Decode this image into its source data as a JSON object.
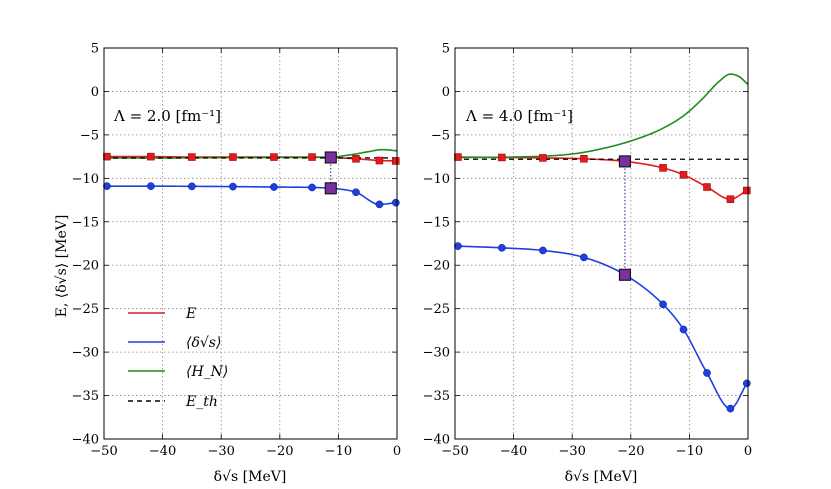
{
  "chart_data": [
    {
      "type": "line",
      "panel": "left",
      "annotation": "Λ = 2.0 [fm⁻¹]",
      "xlabel": "δ√s [MeV]",
      "ylabel": "E, ⟨δ√s⟩ [MeV]",
      "xlim": [
        -50,
        0
      ],
      "ylim": [
        -40,
        5
      ],
      "xticks": [
        "−50",
        "−40",
        "−30",
        "−20",
        "−10",
        "0"
      ],
      "yticks": [
        "5",
        "0",
        "−5",
        "−10",
        "−15",
        "−20",
        "−25",
        "−30",
        "−35",
        "−40"
      ],
      "grid": true,
      "highlight_x": -11.3,
      "series": [
        {
          "name": "E",
          "color": "#e41a1c",
          "marker": "square",
          "x": [
            -49.5,
            -42,
            -35,
            -28,
            -21,
            -14.5,
            -11.3,
            -7,
            -3,
            -0.2
          ],
          "y": [
            -7.5,
            -7.5,
            -7.55,
            -7.55,
            -7.55,
            -7.55,
            -7.6,
            -7.75,
            -7.95,
            -8.0
          ]
        },
        {
          "name": "⟨δ√s⟩",
          "color": "#1f3fe0",
          "marker": "circle",
          "x": [
            -49.5,
            -42,
            -35,
            -28,
            -21,
            -14.5,
            -11.3,
            -7,
            -3,
            -0.2
          ],
          "y": [
            -10.9,
            -10.9,
            -10.92,
            -10.95,
            -11.0,
            -11.05,
            -11.15,
            -11.6,
            -13.0,
            -12.8
          ]
        },
        {
          "name": "⟨H_N⟩",
          "color": "#1e8c1e",
          "marker": "none",
          "x": [
            -50,
            -40,
            -30,
            -20,
            -11.3,
            -8,
            -5,
            -2.5,
            -0.5,
            0
          ],
          "y": [
            -7.65,
            -7.65,
            -7.62,
            -7.6,
            -7.55,
            -7.3,
            -6.95,
            -6.7,
            -6.8,
            -6.85
          ]
        },
        {
          "name": "E_th",
          "color": "#000000",
          "marker": "none",
          "dashed": true,
          "x": [
            -50,
            0
          ],
          "y": [
            -7.65,
            -7.65
          ]
        }
      ],
      "legend": [
        {
          "label": "E",
          "color": "#e41a1c",
          "dashed": false
        },
        {
          "label": "⟨δ√s⟩",
          "color": "#1f3fe0",
          "dashed": false
        },
        {
          "label": "⟨H_N⟩",
          "color": "#1e8c1e",
          "dashed": false
        },
        {
          "label": "E_th",
          "color": "#000000",
          "dashed": true
        }
      ],
      "legend_loc": "lower-left"
    },
    {
      "type": "line",
      "panel": "right",
      "annotation": "Λ = 4.0 [fm⁻¹]",
      "xlabel": "δ√s [MeV]",
      "xlim": [
        -50,
        0
      ],
      "ylim": [
        -40,
        5
      ],
      "xticks": [
        "−50",
        "−40",
        "−30",
        "−20",
        "−10",
        "0"
      ],
      "yticks": [
        "5",
        "0",
        "−5",
        "−10",
        "−15",
        "−20",
        "−25",
        "−30",
        "−35",
        "−40"
      ],
      "grid": true,
      "highlight_x": -21,
      "series": [
        {
          "name": "E",
          "color": "#e41a1c",
          "marker": "square",
          "x": [
            -49.5,
            -42,
            -35,
            -28,
            -21,
            -14.5,
            -11,
            -7,
            -3,
            -0.2
          ],
          "y": [
            -7.55,
            -7.6,
            -7.65,
            -7.75,
            -8.05,
            -8.8,
            -9.6,
            -11.0,
            -12.4,
            -11.4
          ]
        },
        {
          "name": "⟨δ√s⟩",
          "color": "#1f3fe0",
          "marker": "circle",
          "x": [
            -49.5,
            -42,
            -35,
            -28,
            -21,
            -14.5,
            -11,
            -7,
            -3,
            -0.2
          ],
          "y": [
            -17.8,
            -18.0,
            -18.3,
            -19.1,
            -21.1,
            -24.5,
            -27.4,
            -32.4,
            -36.5,
            -33.6
          ]
        },
        {
          "name": "⟨H_N⟩",
          "color": "#1e8c1e",
          "marker": "none",
          "x": [
            -50,
            -40,
            -30,
            -25,
            -20,
            -15,
            -11,
            -8,
            -5,
            -3,
            -1.5,
            0
          ],
          "y": [
            -7.6,
            -7.55,
            -7.2,
            -6.6,
            -5.7,
            -4.4,
            -2.8,
            -1.0,
            1.1,
            2.0,
            1.7,
            0.8
          ]
        },
        {
          "name": "E_th",
          "color": "#000000",
          "marker": "none",
          "dashed": true,
          "x": [
            -50,
            0
          ],
          "y": [
            -7.8,
            -7.8
          ]
        }
      ]
    }
  ]
}
